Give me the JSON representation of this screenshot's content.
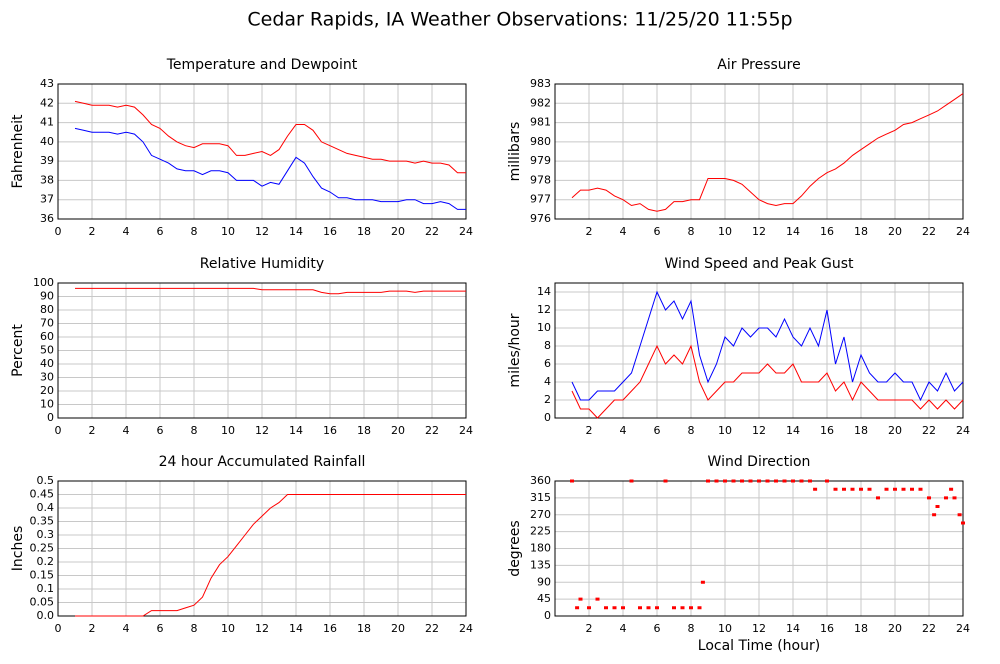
{
  "title": "Cedar Rapids, IA Weather Observations: 11/25/20 11:55p",
  "chart_data": [
    {
      "type": "line",
      "title": "Temperature and Dewpoint",
      "ylabel": "Fahrenheit",
      "x": [
        1,
        1.5,
        2,
        2.5,
        3,
        3.5,
        4,
        4.5,
        5,
        5.5,
        6,
        6.5,
        7,
        7.5,
        8,
        8.5,
        9,
        9.5,
        10,
        10.5,
        11,
        11.5,
        12,
        12.5,
        13,
        13.5,
        14,
        14.5,
        15,
        15.5,
        16,
        16.5,
        17,
        17.5,
        18,
        18.5,
        19,
        19.5,
        20,
        20.5,
        21,
        21.5,
        22,
        22.5,
        23,
        23.5,
        24
      ],
      "xlim": [
        0,
        24
      ],
      "xticks": [
        0,
        2,
        4,
        6,
        8,
        10,
        12,
        14,
        16,
        18,
        20,
        22,
        24
      ],
      "ylim": [
        36,
        43
      ],
      "yticks": [
        36,
        37,
        38,
        39,
        40,
        41,
        42,
        43
      ],
      "grid": true,
      "series": [
        {
          "color": "#ff0000",
          "values": [
            42.1,
            42.0,
            41.9,
            41.9,
            41.9,
            41.8,
            41.9,
            41.8,
            41.4,
            40.9,
            40.7,
            40.3,
            40.0,
            39.8,
            39.7,
            39.9,
            39.9,
            39.9,
            39.8,
            39.3,
            39.3,
            39.4,
            39.5,
            39.3,
            39.6,
            40.3,
            40.9,
            40.9,
            40.6,
            40.0,
            39.8,
            39.6,
            39.4,
            39.3,
            39.2,
            39.1,
            39.1,
            39.0,
            39.0,
            39.0,
            38.9,
            39.0,
            38.9,
            38.9,
            38.8,
            38.4,
            38.4
          ]
        },
        {
          "color": "#0000ff",
          "values": [
            40.7,
            40.6,
            40.5,
            40.5,
            40.5,
            40.4,
            40.5,
            40.4,
            40.0,
            39.3,
            39.1,
            38.9,
            38.6,
            38.5,
            38.5,
            38.3,
            38.5,
            38.5,
            38.4,
            38.0,
            38.0,
            38.0,
            37.7,
            37.9,
            37.8,
            38.5,
            39.2,
            38.9,
            38.2,
            37.6,
            37.4,
            37.1,
            37.1,
            37.0,
            37.0,
            37.0,
            36.9,
            36.9,
            36.9,
            37.0,
            37.0,
            36.8,
            36.8,
            36.9,
            36.8,
            36.5,
            36.5
          ]
        }
      ]
    },
    {
      "type": "line",
      "title": "Air Pressure",
      "ylabel": "millibars",
      "x": [
        1,
        1.5,
        2,
        2.5,
        3,
        3.5,
        4,
        4.5,
        5,
        5.5,
        6,
        6.5,
        7,
        7.5,
        8,
        8.5,
        9,
        9.5,
        10,
        10.5,
        11,
        11.5,
        12,
        12.5,
        13,
        13.5,
        14,
        14.5,
        15,
        15.5,
        16,
        16.5,
        17,
        17.5,
        18,
        18.5,
        19,
        19.5,
        20,
        20.5,
        21,
        21.5,
        22,
        22.5,
        23,
        23.5,
        24
      ],
      "xlim": [
        0,
        24
      ],
      "xticks": [
        2,
        4,
        6,
        8,
        10,
        12,
        14,
        16,
        18,
        20,
        22,
        24
      ],
      "ylim": [
        976,
        983
      ],
      "yticks": [
        976,
        977,
        978,
        979,
        980,
        981,
        982,
        983
      ],
      "grid": true,
      "series": [
        {
          "color": "#ff0000",
          "values": [
            977.1,
            977.5,
            977.5,
            977.6,
            977.5,
            977.2,
            977.0,
            976.7,
            976.8,
            976.5,
            976.4,
            976.5,
            976.9,
            976.9,
            977.0,
            977.0,
            978.1,
            978.1,
            978.1,
            978.0,
            977.8,
            977.4,
            977.0,
            976.8,
            976.7,
            976.8,
            976.8,
            977.2,
            977.7,
            978.1,
            978.4,
            978.6,
            978.9,
            979.3,
            979.6,
            979.9,
            980.2,
            980.4,
            980.6,
            980.9,
            981.0,
            981.2,
            981.4,
            981.6,
            981.9,
            982.2,
            982.5
          ]
        }
      ]
    },
    {
      "type": "line",
      "title": "Relative Humidity",
      "ylabel": "Percent",
      "x": [
        1,
        1.5,
        2,
        2.5,
        3,
        3.5,
        4,
        4.5,
        5,
        5.5,
        6,
        6.5,
        7,
        7.5,
        8,
        8.5,
        9,
        9.5,
        10,
        10.5,
        11,
        11.5,
        12,
        12.5,
        13,
        13.5,
        14,
        14.5,
        15,
        15.5,
        16,
        16.5,
        17,
        17.5,
        18,
        18.5,
        19,
        19.5,
        20,
        20.5,
        21,
        21.5,
        22,
        22.5,
        23,
        23.5,
        24
      ],
      "xlim": [
        0,
        24
      ],
      "xticks": [
        0,
        2,
        4,
        6,
        8,
        10,
        12,
        14,
        16,
        18,
        20,
        22,
        24
      ],
      "ylim": [
        0,
        100
      ],
      "yticks": [
        0,
        10,
        20,
        30,
        40,
        50,
        60,
        70,
        80,
        90,
        100
      ],
      "grid": true,
      "series": [
        {
          "color": "#ff0000",
          "values": [
            96,
            96,
            96,
            96,
            96,
            96,
            96,
            96,
            96,
            96,
            96,
            96,
            96,
            96,
            96,
            96,
            96,
            96,
            96,
            96,
            96,
            96,
            95,
            95,
            95,
            95,
            95,
            95,
            95,
            93,
            92,
            92,
            93,
            93,
            93,
            93,
            93,
            94,
            94,
            94,
            93,
            94,
            94,
            94,
            94,
            94,
            94
          ]
        }
      ]
    },
    {
      "type": "line",
      "title": "Wind Speed and Peak Gust",
      "ylabel": "miles/hour",
      "x": [
        1,
        1.5,
        2,
        2.5,
        3,
        3.5,
        4,
        4.5,
        5,
        5.5,
        6,
        6.5,
        7,
        7.5,
        8,
        8.5,
        9,
        9.5,
        10,
        10.5,
        11,
        11.5,
        12,
        12.5,
        13,
        13.5,
        14,
        14.5,
        15,
        15.5,
        16,
        16.5,
        17,
        17.5,
        18,
        18.5,
        19,
        19.5,
        20,
        20.5,
        21,
        21.5,
        22,
        22.5,
        23,
        23.5,
        24
      ],
      "xlim": [
        0,
        24
      ],
      "xticks": [
        2,
        4,
        6,
        8,
        10,
        12,
        14,
        16,
        18,
        20,
        22,
        24
      ],
      "ylim": [
        0,
        15
      ],
      "yticks": [
        0,
        2,
        4,
        6,
        8,
        10,
        12,
        14
      ],
      "grid": true,
      "series": [
        {
          "color": "#0000ff",
          "values": [
            4,
            2,
            2,
            3,
            3,
            3,
            4,
            5,
            8,
            11,
            14,
            12,
            13,
            11,
            13,
            7,
            4,
            6,
            9,
            8,
            10,
            9,
            10,
            10,
            9,
            11,
            9,
            8,
            10,
            8,
            12,
            6,
            9,
            4,
            7,
            5,
            4,
            4,
            5,
            4,
            4,
            2,
            4,
            3,
            5,
            3,
            4
          ]
        },
        {
          "color": "#ff0000",
          "values": [
            3,
            1,
            1,
            0,
            1,
            2,
            2,
            3,
            4,
            6,
            8,
            6,
            7,
            6,
            8,
            4,
            2,
            3,
            4,
            4,
            5,
            5,
            5,
            6,
            5,
            5,
            6,
            4,
            4,
            4,
            5,
            3,
            4,
            2,
            4,
            3,
            2,
            2,
            2,
            2,
            2,
            1,
            2,
            1,
            2,
            1,
            2
          ]
        }
      ]
    },
    {
      "type": "line",
      "title": "24 hour Accumulated Rainfall",
      "ylabel": "Inches",
      "x": [
        1,
        1.5,
        2,
        2.5,
        3,
        3.5,
        4,
        4.5,
        5,
        5.5,
        6,
        6.5,
        7,
        7.5,
        8,
        8.5,
        9,
        9.5,
        10,
        10.5,
        11,
        11.5,
        12,
        12.5,
        13,
        13.5,
        14,
        14.5,
        15,
        15.5,
        16,
        16.5,
        17,
        17.5,
        18,
        18.5,
        19,
        19.5,
        20,
        20.5,
        21,
        21.5,
        22,
        22.5,
        23,
        23.5,
        24
      ],
      "xlim": [
        0,
        24
      ],
      "xticks": [
        0,
        2,
        4,
        6,
        8,
        10,
        12,
        14,
        16,
        18,
        20,
        22,
        24
      ],
      "ylim": [
        0,
        0.5
      ],
      "yticks": [
        {
          "value": 0,
          "label": "0.0"
        },
        0.05,
        0.1,
        0.15,
        0.2,
        0.25,
        0.3,
        0.35,
        0.4,
        0.45,
        0.5
      ],
      "grid": true,
      "series": [
        {
          "color": "#ff0000",
          "values": [
            0,
            0,
            0,
            0,
            0,
            0,
            0,
            0,
            0,
            0.02,
            0.02,
            0.02,
            0.02,
            0.03,
            0.04,
            0.07,
            0.14,
            0.19,
            0.22,
            0.26,
            0.3,
            0.34,
            0.37,
            0.4,
            0.42,
            0.45,
            0.45,
            0.45,
            0.45,
            0.45,
            0.45,
            0.45,
            0.45,
            0.45,
            0.45,
            0.45,
            0.45,
            0.45,
            0.45,
            0.45,
            0.45,
            0.45,
            0.45,
            0.45,
            0.45,
            0.45,
            0.45
          ]
        }
      ]
    },
    {
      "type": "scatter",
      "title": "Wind Direction",
      "ylabel": "degrees",
      "xlabel": "Local Time (hour)",
      "x": [
        1,
        1.3,
        1.5,
        2,
        2.5,
        3,
        3.5,
        4,
        4.5,
        5,
        5.5,
        6,
        6.5,
        7,
        7.5,
        8,
        8.5,
        8.7,
        9,
        9.5,
        10,
        10.5,
        11,
        11.5,
        12,
        12.5,
        13,
        13.5,
        14,
        14.5,
        15,
        15.3,
        16,
        16.5,
        17,
        17.5,
        18,
        18.5,
        19,
        19.5,
        20,
        20.5,
        21,
        21.5,
        22,
        22.3,
        22.5,
        23,
        23.3,
        23.5,
        23.8,
        24
      ],
      "xlim": [
        0,
        24
      ],
      "xticks": [
        2,
        4,
        6,
        8,
        10,
        12,
        14,
        16,
        18,
        20,
        22,
        24
      ],
      "ylim": [
        0,
        360
      ],
      "yticks": [
        0,
        45,
        90,
        135,
        180,
        225,
        270,
        315,
        360
      ],
      "grid": true,
      "series": [
        {
          "color": "#ff0000",
          "values": [
            360,
            22,
            45,
            22,
            45,
            22,
            22,
            22,
            360,
            22,
            22,
            22,
            360,
            22,
            22,
            22,
            22,
            90,
            360,
            360,
            360,
            360,
            360,
            360,
            360,
            360,
            360,
            360,
            360,
            360,
            360,
            338,
            360,
            338,
            338,
            338,
            338,
            338,
            315,
            338,
            338,
            338,
            338,
            338,
            315,
            270,
            292,
            315,
            338,
            315,
            270,
            248
          ]
        }
      ]
    }
  ]
}
